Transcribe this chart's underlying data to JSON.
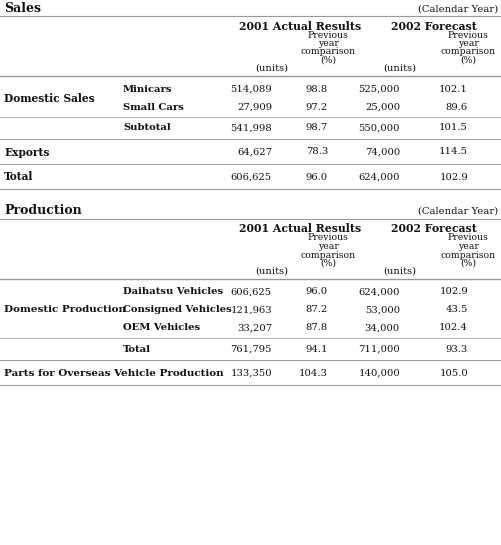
{
  "sales_title": "Sales",
  "sales_calendar": "(Calendar Year)",
  "prod_title": "Production",
  "prod_calendar": "(Calendar Year)",
  "header_main1": "2001 Actual Results",
  "header_main2": "2002 Forecast",
  "sales_rows": [
    {
      "cat": "Domestic Sales",
      "subcat": "Minicars",
      "u01": "514,089",
      "p01": "98.8",
      "u02": "525,000",
      "p02": "102.1"
    },
    {
      "cat": "",
      "subcat": "Small Cars",
      "u01": "27,909",
      "p01": "97.2",
      "u02": "25,000",
      "p02": "89.6"
    },
    {
      "cat": "",
      "subcat": "Subtotal",
      "u01": "541,998",
      "p01": "98.7",
      "u02": "550,000",
      "p02": "101.5"
    },
    {
      "cat": "Exports",
      "subcat": "",
      "u01": "64,627",
      "p01": "78.3",
      "u02": "74,000",
      "p02": "114.5"
    },
    {
      "cat": "Total",
      "subcat": "",
      "u01": "606,625",
      "p01": "96.0",
      "u02": "624,000",
      "p02": "102.9"
    }
  ],
  "prod_rows": [
    {
      "cat": "Domestic Production",
      "subcat": "Daihatsu Vehicles",
      "u01": "606,625",
      "p01": "96.0",
      "u02": "624,000",
      "p02": "102.9"
    },
    {
      "cat": "",
      "subcat": "Consigned Vehicles",
      "u01": "121,963",
      "p01": "87.2",
      "u02": "53,000",
      "p02": "43.5"
    },
    {
      "cat": "",
      "subcat": "OEM Vehicles",
      "u01": "33,207",
      "p01": "87.8",
      "u02": "34,000",
      "p02": "102.4"
    },
    {
      "cat": "",
      "subcat": "Total",
      "u01": "761,795",
      "p01": "94.1",
      "u02": "711,000",
      "p02": "93.3"
    },
    {
      "cat": "Parts for Overseas Vehicle Production",
      "subcat": "",
      "u01": "133,350",
      "p01": "104.3",
      "u02": "140,000",
      "p02": "105.0"
    }
  ],
  "bg_color": "#ffffff",
  "text_color": "#111111",
  "line_color": "#999999",
  "font_size": 7.2,
  "title_font_size": 9.0,
  "header_font_size": 7.8
}
